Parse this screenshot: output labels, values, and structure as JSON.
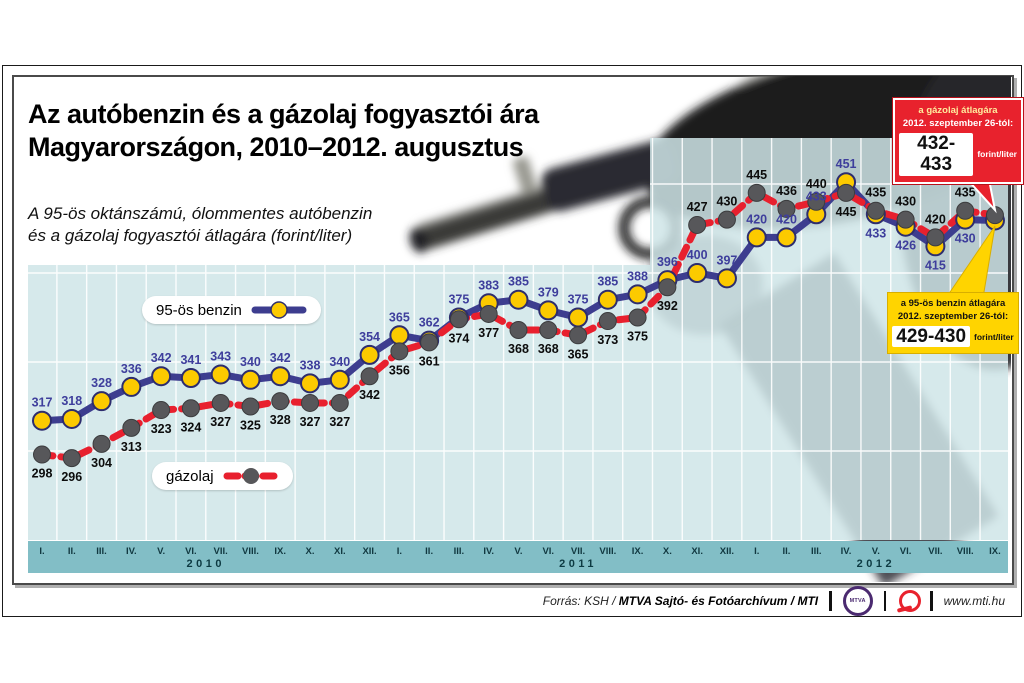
{
  "page": {
    "title_line1": "Az autóbenzin és a gázolaj fogyasztói ára",
    "title_line2": "Magyarországon, 2010–2012. augusztus",
    "subtitle_line1": "A 95-ös oktánszámú, ólommentes autóbenzin",
    "subtitle_line2": "és a gázolaj fogyasztói átlagára (forint/liter)"
  },
  "legend": {
    "benzin_label": "95-ös benzin",
    "gazolaj_label": "gázolaj"
  },
  "callouts": {
    "diesel": {
      "line1": "a gázolaj átlagára",
      "line2": "2012. szeptember 26-tól:",
      "value": "432-433",
      "unit": "forint/liter"
    },
    "benzin": {
      "line1": "a 95-ös benzin átlagára",
      "line2": "2012. szeptember 26-tól:",
      "value": "429-430",
      "unit": "forint/liter"
    }
  },
  "footer": {
    "source_prefix": "Forrás: KSH / ",
    "source_bold": "MTVA Sajtó- és Fotóarchívum / MTI",
    "mtva_logo_text": "MTVA",
    "mti_logo": "mti-logo",
    "url": "www.mti.hu"
  },
  "colors": {
    "panel": "#cfe5e8",
    "axis_band": "#82bec6",
    "benzin_line": "#3d3d8f",
    "benzin_marker": "#fcca00",
    "benzin_label": "#3e3e9c",
    "gazolaj_line": "#e8202e",
    "gazolaj_marker": "#57575a",
    "gazolaj_label": "#0c0c0c",
    "callout_red": "#e8222d",
    "callout_yellow": "#ffd400"
  },
  "chart_data": {
    "type": "line",
    "title": "Az autóbenzin és a gázolaj fogyasztói ára Magyarországon, 2010–2012. augusztus",
    "ylabel": "forint/liter",
    "ylim": [
      250,
      476
    ],
    "grid_values": [
      300,
      350,
      400,
      450
    ],
    "legend_position": "inside-left",
    "categories": [
      "I.",
      "II.",
      "III.",
      "IV.",
      "V.",
      "VI.",
      "VII.",
      "VIII.",
      "IX.",
      "X.",
      "XI.",
      "XII.",
      "I.",
      "II.",
      "III.",
      "IV.",
      "V.",
      "VI.",
      "VII.",
      "VIII.",
      "IX.",
      "X.",
      "XI.",
      "XII.",
      "I.",
      "II.",
      "III.",
      "IV.",
      "V.",
      "VI.",
      "VII.",
      "VIII.",
      "IX."
    ],
    "year_groups": [
      {
        "label": "2010",
        "center_index": 5.5
      },
      {
        "label": "2011",
        "center_index": 18
      },
      {
        "label": "2012",
        "center_index": 28
      }
    ],
    "series": [
      {
        "name": "95-ös benzin",
        "values": [
          317,
          318,
          328,
          336,
          342,
          341,
          343,
          340,
          342,
          338,
          340,
          354,
          365,
          362,
          375,
          383,
          385,
          379,
          375,
          385,
          388,
          396,
          400,
          397,
          420,
          420,
          433,
          451,
          433,
          426,
          415,
          430,
          429.5
        ],
        "label_positions": [
          "above",
          "above",
          "above",
          "above",
          "above",
          "above",
          "above",
          "above",
          "above",
          "above",
          "above",
          "above",
          "above",
          "above",
          "above",
          "above",
          "above",
          "above",
          "above",
          "above",
          "above",
          "above",
          "above",
          "above",
          "above",
          "above",
          "above",
          "above",
          "below",
          "below",
          "below",
          "below",
          null
        ]
      },
      {
        "name": "gázolaj",
        "values": [
          298,
          296,
          304,
          313,
          323,
          324,
          327,
          325,
          328,
          327,
          327,
          342,
          356,
          361,
          374,
          377,
          368,
          368,
          365,
          373,
          375,
          392,
          427,
          430,
          445,
          436,
          440,
          445,
          435,
          430,
          420,
          435,
          432.5
        ],
        "label_positions": [
          "below",
          "below",
          "below",
          "below",
          "below",
          "below",
          "below",
          "below",
          "below",
          "below",
          "below",
          "below",
          "below",
          "below",
          "below",
          "below",
          "below",
          "below",
          "below",
          "below",
          "below",
          "below",
          "above",
          "above",
          "above",
          "above",
          "above",
          "below",
          "above",
          "above",
          "above",
          "above",
          null
        ]
      }
    ],
    "final_point_note": "last point (IX. 2012) values given by the callout boxes: benzin 429-430, gázolaj 432-433"
  }
}
